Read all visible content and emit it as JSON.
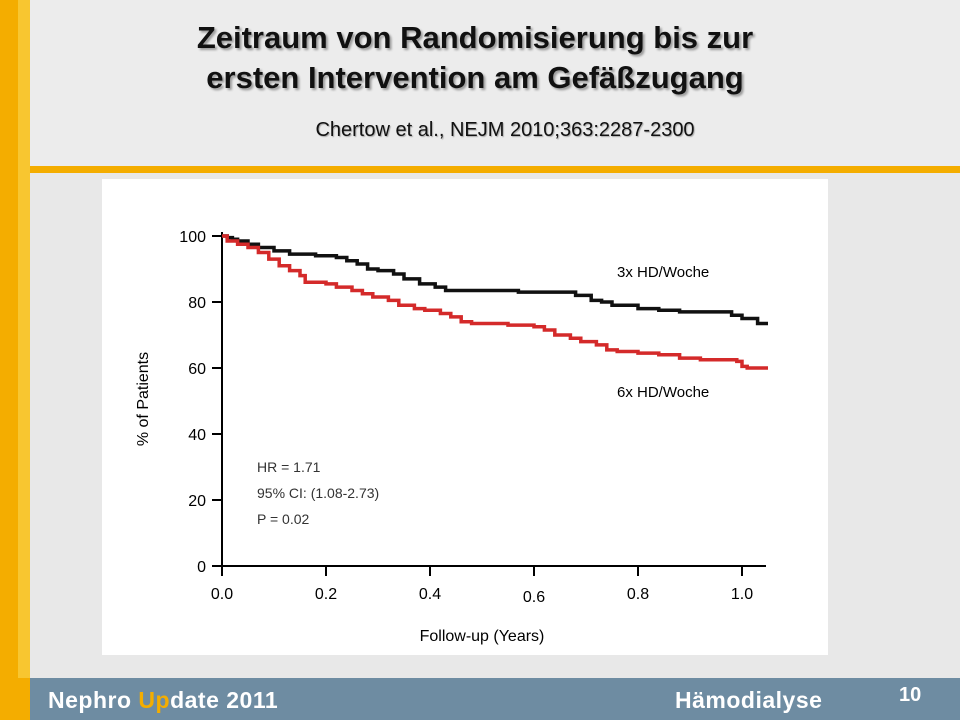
{
  "slide": {
    "title_line1": "Zeitraum von Randomisierung bis zur",
    "title_line2": "ersten Intervention am Gefäßzugang",
    "citation": "Chertow et al., NEJM 2010;363:2287-2300"
  },
  "footer": {
    "brand_part1": "Nephro ",
    "brand_highlight": "Up",
    "brand_part2": "date 2011",
    "section": "Hämodialyse",
    "page_number": "10"
  },
  "colors": {
    "accent": "#f4ad00",
    "footer_bg": "#6e8ca2",
    "series_3x": "#111111",
    "series_6x": "#d42a2a"
  },
  "chart_data": {
    "type": "line",
    "step": true,
    "xlabel": "Follow-up (Years)",
    "ylabel": "% of Patients",
    "xlim": [
      0,
      1.05
    ],
    "ylim": [
      0,
      100
    ],
    "x_ticks": [
      "0.0",
      "0.2",
      "0.4",
      "0.6",
      "0.8",
      "1.0"
    ],
    "y_ticks": [
      "0",
      "20",
      "40",
      "60",
      "80",
      "100"
    ],
    "annotations": [
      "HR = 1.71",
      "95% CI: (1.08-2.73)",
      "P = 0.02"
    ],
    "series": [
      {
        "name": "3x HD/Woche",
        "color": "#111111",
        "points": [
          [
            0,
            100
          ],
          [
            0.01,
            99.5
          ],
          [
            0.02,
            99
          ],
          [
            0.03,
            98.5
          ],
          [
            0.05,
            97.5
          ],
          [
            0.07,
            96.5
          ],
          [
            0.1,
            95.5
          ],
          [
            0.13,
            94.5
          ],
          [
            0.18,
            94
          ],
          [
            0.22,
            93.5
          ],
          [
            0.24,
            92.5
          ],
          [
            0.26,
            91.5
          ],
          [
            0.28,
            90
          ],
          [
            0.3,
            89.5
          ],
          [
            0.33,
            88.5
          ],
          [
            0.35,
            87
          ],
          [
            0.38,
            85.5
          ],
          [
            0.41,
            84.5
          ],
          [
            0.43,
            83.5
          ],
          [
            0.47,
            83.5
          ],
          [
            0.56,
            83.5
          ],
          [
            0.57,
            83
          ],
          [
            0.66,
            83
          ],
          [
            0.68,
            82
          ],
          [
            0.71,
            80.5
          ],
          [
            0.73,
            80
          ],
          [
            0.75,
            79
          ],
          [
            0.8,
            78
          ],
          [
            0.84,
            77.5
          ],
          [
            0.88,
            77
          ],
          [
            0.97,
            77
          ],
          [
            0.98,
            76
          ],
          [
            1.0,
            75
          ],
          [
            1.03,
            73.5
          ],
          [
            1.05,
            73.5
          ]
        ]
      },
      {
        "name": "6x HD/Woche",
        "color": "#d42a2a",
        "points": [
          [
            0,
            100
          ],
          [
            0.01,
            98.5
          ],
          [
            0.03,
            97.5
          ],
          [
            0.05,
            96.5
          ],
          [
            0.07,
            95
          ],
          [
            0.09,
            93
          ],
          [
            0.11,
            91
          ],
          [
            0.13,
            89.5
          ],
          [
            0.15,
            88
          ],
          [
            0.16,
            86
          ],
          [
            0.2,
            85.5
          ],
          [
            0.22,
            84.5
          ],
          [
            0.25,
            83.5
          ],
          [
            0.27,
            82.5
          ],
          [
            0.29,
            81.5
          ],
          [
            0.32,
            80.5
          ],
          [
            0.34,
            79
          ],
          [
            0.37,
            78
          ],
          [
            0.39,
            77.5
          ],
          [
            0.42,
            76.5
          ],
          [
            0.44,
            75.5
          ],
          [
            0.46,
            74
          ],
          [
            0.48,
            73.5
          ],
          [
            0.53,
            73.5
          ],
          [
            0.55,
            73
          ],
          [
            0.6,
            72.5
          ],
          [
            0.62,
            71.5
          ],
          [
            0.64,
            70
          ],
          [
            0.67,
            69
          ],
          [
            0.69,
            68
          ],
          [
            0.72,
            67
          ],
          [
            0.74,
            65.5
          ],
          [
            0.76,
            65
          ],
          [
            0.8,
            64.5
          ],
          [
            0.84,
            64
          ],
          [
            0.88,
            63
          ],
          [
            0.92,
            62.5
          ],
          [
            0.97,
            62.5
          ],
          [
            0.99,
            62
          ],
          [
            1.0,
            60.5
          ],
          [
            1.01,
            60
          ],
          [
            1.05,
            60
          ]
        ]
      }
    ]
  }
}
